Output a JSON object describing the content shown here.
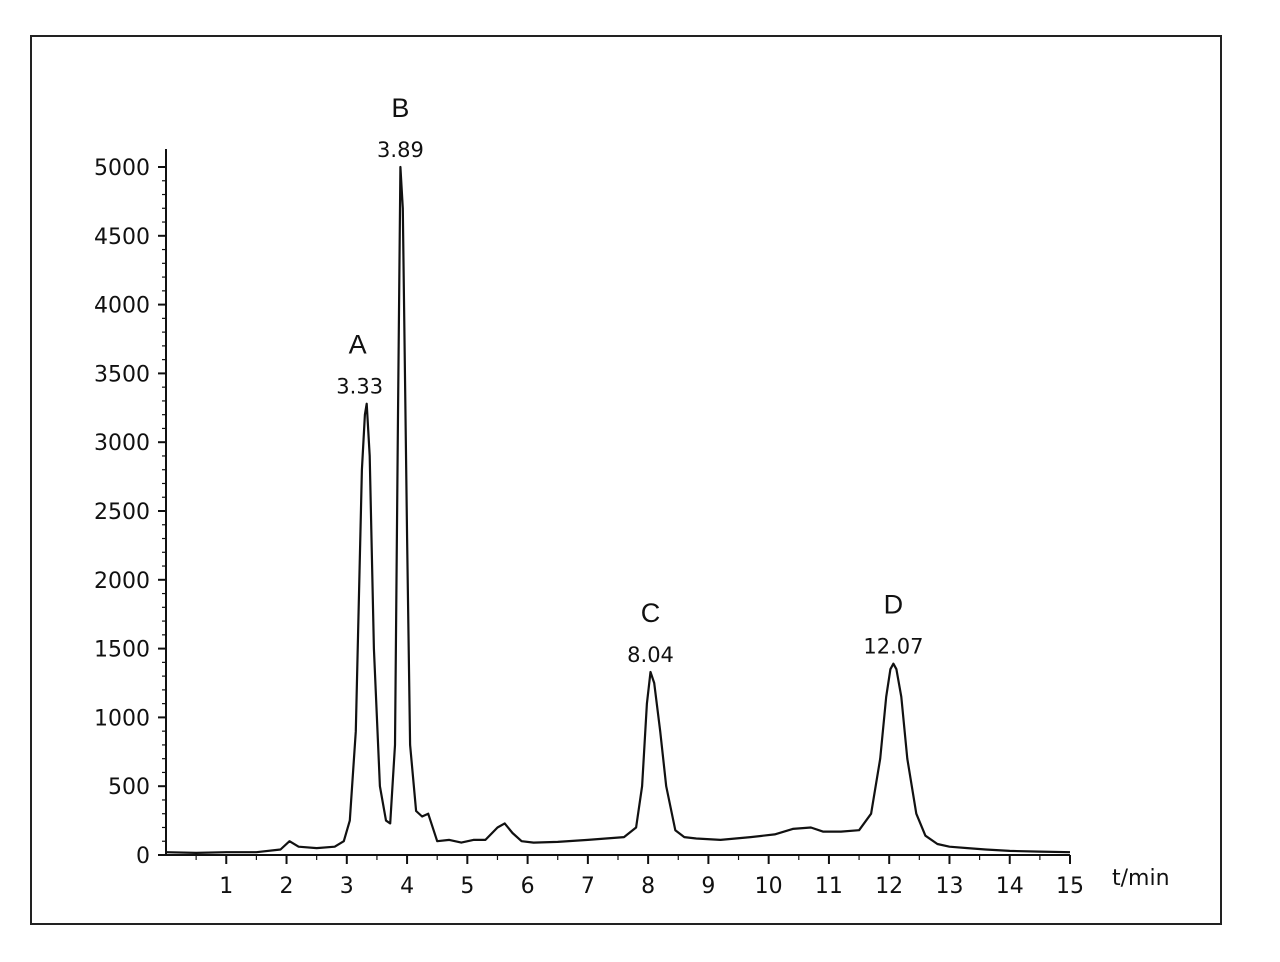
{
  "chart_data": {
    "type": "line",
    "title": "",
    "xlabel": "t/min",
    "ylabel": "",
    "xlim": [
      0,
      15
    ],
    "ylim": [
      0,
      5000
    ],
    "x_ticks": [
      1,
      2,
      3,
      4,
      5,
      6,
      7,
      8,
      9,
      10,
      11,
      12,
      13,
      14,
      15
    ],
    "y_ticks": [
      0,
      500,
      1000,
      1500,
      2000,
      2500,
      3000,
      3500,
      4000,
      4500,
      5000
    ],
    "grid": false,
    "series": [
      {
        "x": [
          0,
          0.5,
          1,
          1.5,
          1.9,
          2.05,
          2.2,
          2.5,
          2.8,
          2.95,
          3.05,
          3.15,
          3.25,
          3.3,
          3.33,
          3.38,
          3.45,
          3.55,
          3.65,
          3.72,
          3.8,
          3.85,
          3.89,
          3.93,
          4.0,
          4.05,
          4.15,
          4.25,
          4.35,
          4.5,
          4.7,
          4.9,
          5.1,
          5.3,
          5.5,
          5.62,
          5.75,
          5.9,
          6.1,
          6.5,
          7.0,
          7.3,
          7.6,
          7.8,
          7.9,
          7.98,
          8.04,
          8.1,
          8.2,
          8.3,
          8.45,
          8.6,
          8.8,
          9.2,
          9.7,
          10.1,
          10.4,
          10.7,
          10.9,
          11.2,
          11.5,
          11.7,
          11.85,
          11.95,
          12.02,
          12.07,
          12.12,
          12.2,
          12.3,
          12.45,
          12.6,
          12.8,
          13.0,
          13.3,
          13.6,
          14.0,
          14.5,
          15.0
        ],
        "values": [
          20,
          15,
          20,
          20,
          40,
          100,
          60,
          50,
          60,
          100,
          250,
          900,
          2800,
          3200,
          3280,
          2900,
          1500,
          500,
          250,
          230,
          800,
          3200,
          5000,
          4700,
          2300,
          800,
          320,
          280,
          300,
          100,
          110,
          90,
          110,
          110,
          200,
          230,
          160,
          100,
          90,
          95,
          110,
          120,
          130,
          200,
          500,
          1100,
          1330,
          1250,
          900,
          500,
          180,
          130,
          120,
          110,
          130,
          150,
          190,
          200,
          170,
          170,
          180,
          300,
          700,
          1150,
          1350,
          1390,
          1350,
          1150,
          700,
          300,
          140,
          80,
          60,
          50,
          40,
          30,
          25,
          20
        ]
      }
    ],
    "peaks": [
      {
        "letter": "A",
        "time": "3.33",
        "x": 3.33,
        "y": 3280
      },
      {
        "letter": "B",
        "time": "3.89",
        "x": 3.89,
        "y": 5000
      },
      {
        "letter": "C",
        "time": "8.04",
        "x": 8.04,
        "y": 1330
      },
      {
        "letter": "D",
        "time": "12.07",
        "x": 12.07,
        "y": 1390
      }
    ]
  }
}
